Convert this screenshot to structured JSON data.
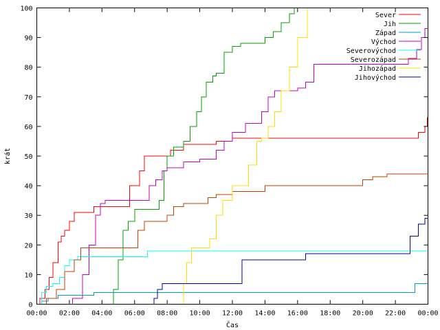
{
  "chart_data": {
    "type": "line",
    "title": "",
    "xlabel": "Čas",
    "ylabel": "krát",
    "xlim": [
      0,
      24
    ],
    "ylim": [
      0,
      100
    ],
    "x_ticks": [
      "00:00",
      "02:00",
      "04:00",
      "06:00",
      "08:00",
      "10:00",
      "12:00",
      "14:00",
      "16:00",
      "18:00",
      "20:00",
      "22:00",
      "00:00"
    ],
    "y_ticks": [
      "0",
      "10",
      "20",
      "30",
      "40",
      "50",
      "60",
      "70",
      "80",
      "90",
      "100"
    ],
    "grid": false,
    "legend_position": "top-right",
    "step": true,
    "series": [
      {
        "name": "Sever",
        "color": "#ff0000",
        "x": [
          0,
          0.2,
          0.5,
          0.75,
          1.0,
          1.3,
          1.5,
          1.7,
          2.0,
          2.3,
          3.5,
          5.0,
          5.7,
          6.3,
          6.6,
          7.0,
          8.2,
          9.0,
          10.5,
          11.0,
          12.0,
          22.8,
          23.4,
          23.8,
          23.95,
          24.0
        ],
        "y": [
          0,
          2,
          5,
          9,
          14,
          21,
          23,
          25,
          28,
          31,
          33,
          33,
          40,
          45,
          50,
          50,
          52,
          54,
          54,
          55,
          56,
          56,
          58,
          60,
          63,
          63
        ]
      },
      {
        "name": "Jih",
        "color": "#00a000",
        "x": [
          0,
          4.4,
          4.7,
          5.0,
          5.3,
          5.6,
          6.0,
          7.0,
          7.5,
          7.8,
          8.0,
          8.4,
          9.0,
          9.4,
          9.8,
          10.1,
          10.4,
          10.8,
          11.0,
          11.5,
          12.0,
          12.5,
          13.0,
          13.5,
          14.0,
          14.5,
          15.0,
          15.5,
          15.8,
          16.2
        ],
        "y": [
          0,
          0,
          5,
          15,
          25,
          28,
          32,
          32,
          35,
          45,
          50,
          53,
          55,
          60,
          65,
          70,
          75,
          77,
          78,
          85,
          87,
          88,
          88,
          88,
          90,
          92,
          95,
          98,
          100,
          100
        ]
      },
      {
        "name": "Západ",
        "color": "#00a0c0",
        "x": [
          0,
          0.3,
          0.7,
          1.3,
          3.5,
          22.9,
          23.2,
          24.0
        ],
        "y": [
          0,
          1,
          2,
          3,
          4,
          4,
          7,
          7
        ]
      },
      {
        "name": "Východ",
        "color": "#c000c0",
        "x": [
          0,
          2.2,
          2.8,
          3.2,
          3.6,
          3.9,
          4.2,
          6.5,
          6.9,
          7.3,
          7.7,
          8.0,
          9.0,
          10.0,
          11.0,
          11.5,
          12.0,
          12.8,
          13.1,
          13.5,
          13.8,
          14.2,
          14.6,
          15.0,
          16.0,
          16.5,
          17.0,
          18.0,
          22.0,
          22.8,
          23.3,
          23.6,
          23.8,
          24.0
        ],
        "y": [
          0,
          2,
          10,
          20,
          30,
          34,
          35,
          35,
          40,
          42,
          45,
          46,
          48,
          49,
          52,
          55,
          58,
          61,
          61,
          61,
          65,
          70,
          72,
          72,
          73,
          75,
          81,
          81,
          81,
          83,
          86,
          90,
          93,
          93
        ]
      },
      {
        "name": "Severovýchod",
        "color": "#00ffff",
        "x": [
          0,
          0.3,
          0.6,
          1.0,
          1.4,
          1.7,
          2.0,
          2.5,
          3.5,
          6.0,
          6.8,
          7.2,
          8.0,
          24.0
        ],
        "y": [
          0,
          4,
          6,
          7,
          9,
          13,
          15,
          16,
          16,
          16,
          18,
          18,
          18,
          18
        ]
      },
      {
        "name": "Severozápad",
        "color": "#c04000",
        "x": [
          0,
          0.6,
          1.2,
          1.7,
          2.3,
          2.7,
          3.5,
          5.8,
          6.2,
          6.6,
          7.0,
          7.5,
          8.0,
          8.4,
          9.0,
          10.5,
          11.0,
          12.0,
          12.5,
          14.0,
          20.0,
          20.6,
          21.5,
          24.0
        ],
        "y": [
          0,
          2,
          5,
          11,
          15,
          19,
          19,
          19,
          25,
          28,
          28,
          28,
          30,
          33,
          34,
          36,
          37,
          38,
          38,
          40,
          42,
          43,
          44,
          44
        ]
      },
      {
        "name": "Jihozápad",
        "color": "#ffdd00",
        "x": [
          0,
          8.8,
          9.0,
          9.2,
          9.5,
          10.0,
          10.6,
          11.0,
          11.4,
          12.0,
          12.4,
          13.0,
          13.5,
          13.8,
          14.2,
          14.6,
          15.0,
          15.5,
          16.0,
          16.6
        ],
        "y": [
          0,
          0,
          7,
          14,
          19,
          19,
          22,
          30,
          35,
          40,
          40,
          47,
          55,
          56,
          60,
          65,
          72,
          80,
          90,
          100
        ]
      },
      {
        "name": "Jihovýchod",
        "color": "#0000a0",
        "x": [
          0,
          7.1,
          7.2,
          7.4,
          7.7,
          8.0,
          9.0,
          12.2,
          12.6,
          14.0,
          16.5,
          22.5,
          22.9,
          23.4,
          23.8,
          24.0
        ],
        "y": [
          0,
          0,
          2,
          5,
          7,
          7,
          7,
          7,
          15,
          15,
          17,
          17,
          23,
          27,
          29,
          29
        ]
      }
    ]
  }
}
